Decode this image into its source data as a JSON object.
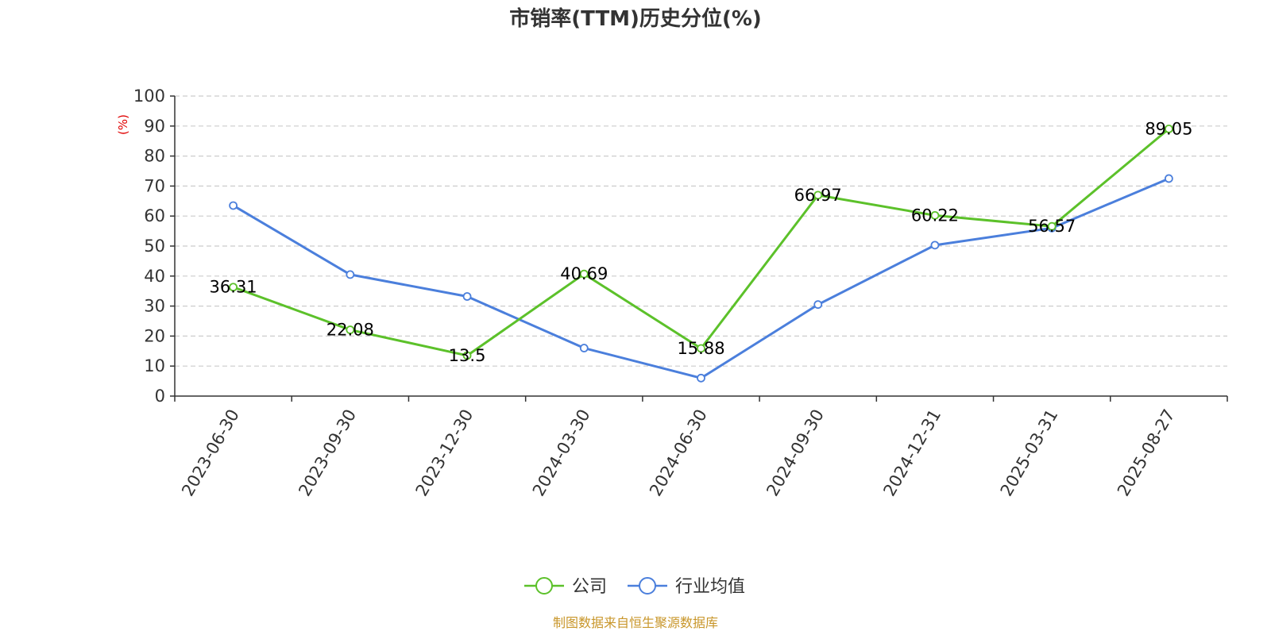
{
  "chart_data": {
    "type": "line",
    "title": "市销率(TTM)历史分位(%)",
    "ylabel": "(%)",
    "ylim": [
      0,
      100
    ],
    "yticks": [
      0,
      10,
      20,
      30,
      40,
      50,
      60,
      70,
      80,
      90,
      100
    ],
    "categories": [
      "2023-06-30",
      "2023-09-30",
      "2023-12-30",
      "2024-03-30",
      "2024-06-30",
      "2024-09-30",
      "2024-12-31",
      "2025-03-31",
      "2025-08-27"
    ],
    "series": [
      {
        "name": "公司",
        "color": "#5cc12a",
        "values": [
          36.31,
          22.08,
          13.5,
          40.69,
          15.88,
          66.97,
          60.22,
          56.57,
          89.05
        ],
        "labels": [
          "36.31",
          "22.08",
          "13.5",
          "40.69",
          "15.88",
          "66.97",
          "60.22",
          "56.57",
          "89.05"
        ],
        "show_labels": true
      },
      {
        "name": "行业均值",
        "color": "#4b7fdc",
        "values": [
          63.5,
          40.5,
          33.2,
          16.0,
          6.0,
          30.5,
          50.3,
          56.0,
          72.5
        ],
        "show_labels": false
      }
    ],
    "grid": "horizontal-dashed",
    "legend_position": "bottom-center",
    "source": "制图数据来自恒生聚源数据库"
  }
}
